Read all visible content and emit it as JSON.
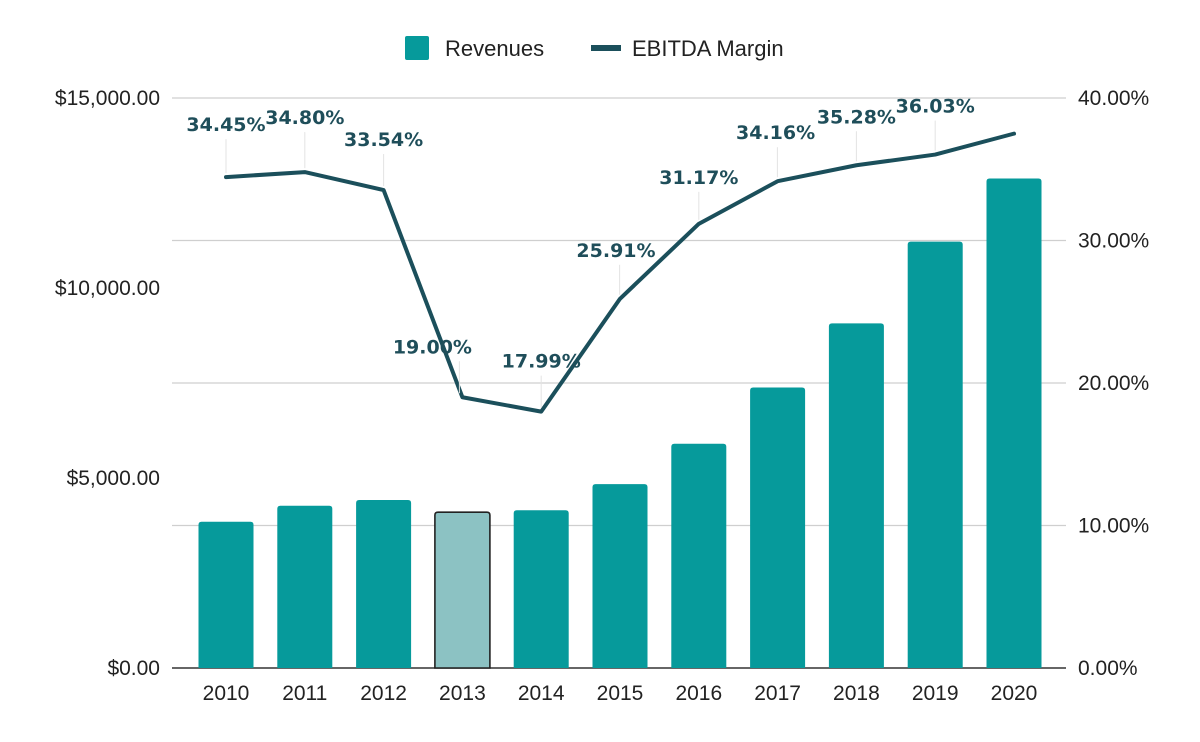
{
  "chart_data": {
    "type": "bar+line",
    "categories": [
      "2010",
      "2011",
      "2012",
      "2013",
      "2014",
      "2015",
      "2016",
      "2017",
      "2018",
      "2019",
      "2020"
    ],
    "series": [
      {
        "name": "Revenues",
        "type": "bar",
        "axis": "left",
        "color": "#069a9b",
        "values": [
          3850,
          4270,
          4420,
          4100,
          4150,
          4840,
          5900,
          7380,
          9070,
          11220,
          12880
        ]
      },
      {
        "name": "EBITDA Margin",
        "type": "line",
        "axis": "right",
        "color": "#1b4f5b",
        "values": [
          34.45,
          34.8,
          33.54,
          19.0,
          17.99,
          25.91,
          31.17,
          34.16,
          35.28,
          36.03,
          37.5
        ],
        "data_labels": [
          "34.45%",
          "34.80%",
          "33.54%",
          "19.00%",
          "17.99%",
          "25.91%",
          "31.17%",
          "34.16%",
          "35.28%",
          "36.03%",
          null
        ]
      }
    ],
    "highlighted_category": "2013",
    "highlight_color": "#8cc2c3",
    "y_left": {
      "min": 0,
      "max": 15000,
      "ticks": [
        "$0.00",
        "$5,000.00",
        "$10,000.00",
        "$15,000.00"
      ],
      "tick_values": [
        0,
        5000,
        10000,
        15000
      ]
    },
    "y_right": {
      "min": 0,
      "max": 40,
      "ticks": [
        "0.00%",
        "10.00%",
        "20.00%",
        "30.00%",
        "40.00%"
      ],
      "tick_values": [
        0,
        10,
        20,
        30,
        40
      ]
    },
    "grid": true,
    "legend_position": "top-center",
    "legend": [
      {
        "label": "Revenues",
        "marker": "square",
        "color": "#069a9b"
      },
      {
        "label": "EBITDA Margin",
        "marker": "line",
        "color": "#1b4f5b"
      }
    ],
    "title": "",
    "xlabel": "",
    "ylabel": ""
  }
}
